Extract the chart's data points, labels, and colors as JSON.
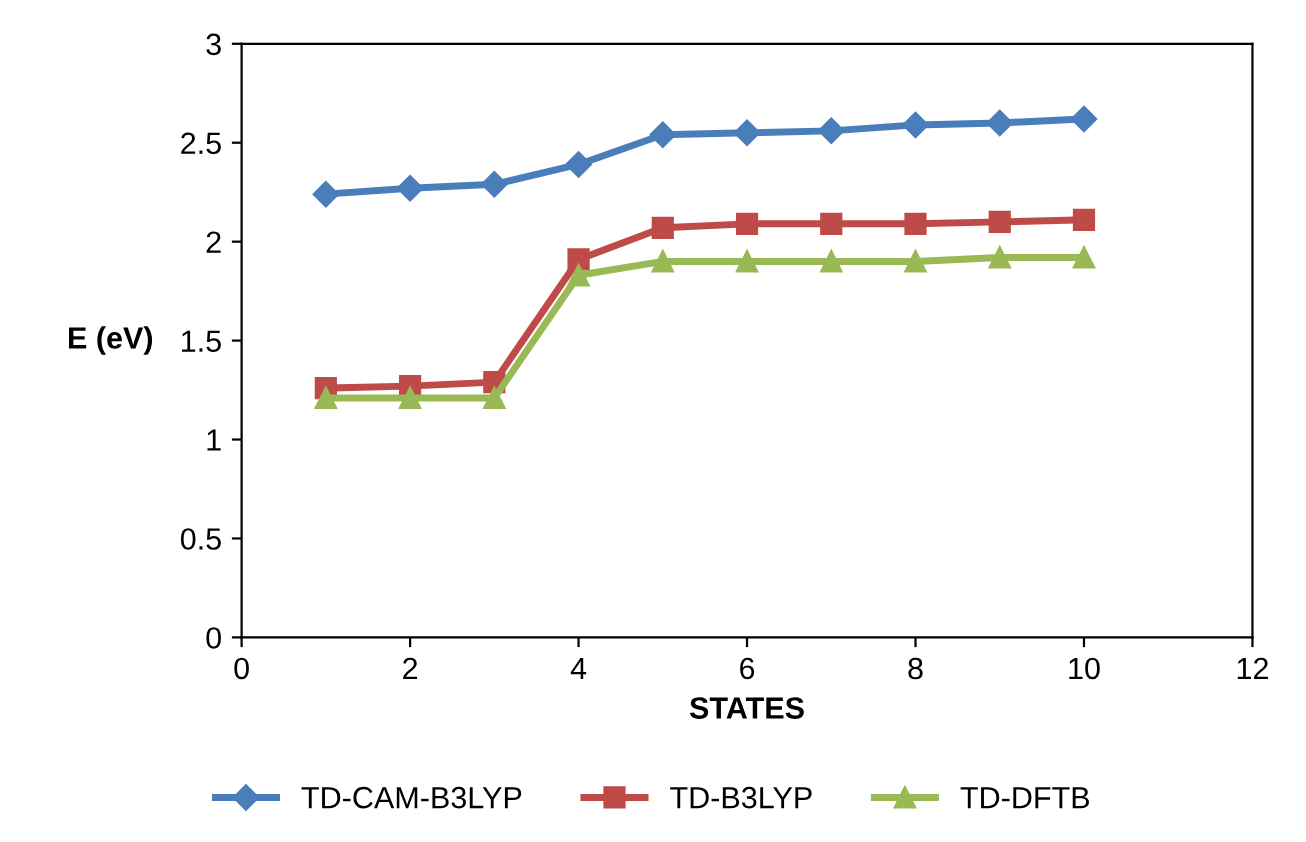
{
  "chart_data": {
    "type": "line",
    "xlabel": "STATES",
    "ylabel": "E (eV)",
    "x": [
      1,
      2,
      3,
      4,
      5,
      6,
      7,
      8,
      9,
      10
    ],
    "xlim": [
      0,
      12
    ],
    "xticks": [
      0,
      2,
      4,
      6,
      8,
      10,
      12
    ],
    "ylim": [
      0,
      3
    ],
    "yticks": [
      0,
      0.5,
      1,
      1.5,
      2,
      2.5,
      3
    ],
    "grid": false,
    "legend": "bottom",
    "series": [
      {
        "name": "TD-CAM-B3LYP",
        "color": "#4a7ebb",
        "marker": "diamond",
        "values": [
          2.24,
          2.27,
          2.29,
          2.39,
          2.54,
          2.55,
          2.56,
          2.59,
          2.6,
          2.62
        ]
      },
      {
        "name": "TD-B3LYP",
        "color": "#be4b48",
        "marker": "square",
        "values": [
          1.26,
          1.27,
          1.29,
          1.91,
          2.07,
          2.09,
          2.09,
          2.09,
          2.1,
          2.11
        ]
      },
      {
        "name": "TD-DFTB",
        "color": "#98b954",
        "marker": "triangle",
        "values": [
          1.21,
          1.21,
          1.21,
          1.83,
          1.9,
          1.9,
          1.9,
          1.9,
          1.92,
          1.92
        ]
      }
    ]
  }
}
